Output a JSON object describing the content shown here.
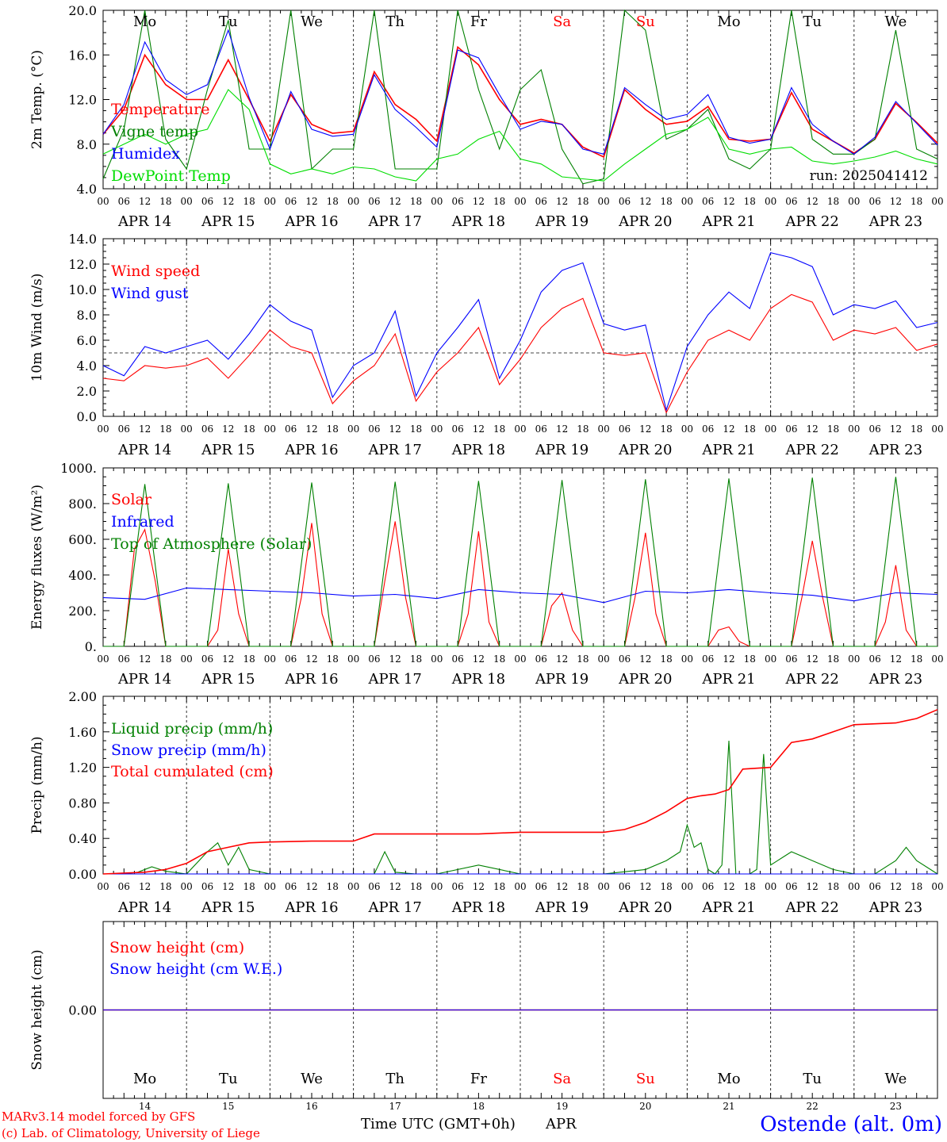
{
  "chart_data": [
    {
      "type": "line",
      "ylabel": "2m Temp. (°C)",
      "ylim": [
        4,
        22
      ],
      "yticks": [
        "4.0",
        "8.0",
        "12.0",
        "16.0",
        "20.0"
      ],
      "run_label": "run: 2025041412",
      "series": [
        {
          "name": "Temperature",
          "color": "#ff0000",
          "x": [
            0,
            6,
            12,
            18,
            24,
            30,
            36,
            42,
            48,
            54,
            60,
            66,
            72,
            78,
            84,
            90,
            96,
            102,
            108,
            114,
            120,
            126,
            132,
            138,
            144,
            150,
            156,
            162,
            168,
            174,
            180,
            186,
            192,
            198,
            204,
            210,
            216,
            222,
            228,
            234,
            240
          ],
          "y": [
            9.5,
            12.0,
            17.5,
            14.5,
            13.0,
            13.0,
            17.0,
            13.0,
            8.8,
            13.5,
            10.5,
            9.6,
            9.8,
            15.8,
            12.5,
            11.0,
            8.8,
            18.3,
            16.5,
            13.0,
            10.5,
            11.0,
            10.5,
            8.2,
            7.2,
            14.0,
            12.0,
            10.5,
            10.8,
            12.3,
            9.0,
            8.8,
            9.0,
            13.7,
            10.0,
            8.8,
            7.6,
            9.0,
            12.6,
            10.7,
            8.6
          ]
        },
        {
          "name": "Vigne temp",
          "color": "#008000",
          "x": [
            0,
            6,
            12,
            18,
            24,
            30,
            36,
            42,
            48,
            54,
            60,
            66,
            72,
            78,
            84,
            90,
            96,
            102,
            108,
            114,
            120,
            126,
            132,
            138,
            144,
            150,
            156,
            162,
            168,
            174,
            180,
            186,
            192,
            198,
            204,
            210,
            216,
            222,
            228,
            234,
            240
          ],
          "y": [
            5.0,
            10.0,
            22.0,
            9.0,
            6.0,
            14.0,
            21.0,
            8.0,
            8.0,
            22.0,
            6.0,
            8.0,
            8.0,
            22.0,
            6.0,
            6.0,
            6.0,
            22.0,
            14.0,
            8.0,
            14.0,
            16.0,
            8.0,
            4.5,
            5.0,
            22.0,
            20.0,
            9.0,
            10.0,
            12.0,
            7.0,
            6.0,
            8.0,
            22.0,
            9.0,
            7.5,
            7.5,
            9.0,
            20.0,
            8.0,
            7.0
          ]
        },
        {
          "name": "Humidex",
          "color": "#0000ff",
          "x": [
            0,
            6,
            12,
            18,
            24,
            30,
            36,
            42,
            48,
            54,
            60,
            66,
            72,
            78,
            84,
            90,
            96,
            102,
            108,
            114,
            120,
            126,
            132,
            138,
            144,
            150,
            156,
            162,
            168,
            174,
            180,
            186,
            192,
            198,
            204,
            210,
            216,
            222,
            228,
            234,
            240
          ],
          "y": [
            9.5,
            12.5,
            18.8,
            15.0,
            13.5,
            14.5,
            20.0,
            13.2,
            8.0,
            13.8,
            10.0,
            9.3,
            9.5,
            15.5,
            12.0,
            10.2,
            8.2,
            18.0,
            17.2,
            13.5,
            10.0,
            10.8,
            10.5,
            8.0,
            7.5,
            14.2,
            12.5,
            11.0,
            11.5,
            13.5,
            9.2,
            8.6,
            9.0,
            14.2,
            10.5,
            8.8,
            7.5,
            9.2,
            12.8,
            10.6,
            8.4
          ]
        },
        {
          "name": "DewPoint Temp",
          "color": "#00dd00",
          "x": [
            0,
            6,
            12,
            18,
            24,
            30,
            36,
            42,
            48,
            54,
            60,
            66,
            72,
            78,
            84,
            90,
            96,
            102,
            108,
            114,
            120,
            126,
            132,
            138,
            144,
            150,
            156,
            162,
            168,
            174,
            180,
            186,
            192,
            198,
            204,
            210,
            216,
            222,
            228,
            234,
            240
          ],
          "y": [
            7.5,
            8.5,
            9.5,
            8.5,
            9.5,
            10.0,
            14.0,
            12.0,
            6.5,
            5.5,
            6.0,
            5.5,
            6.2,
            6.0,
            5.2,
            4.8,
            7.0,
            7.5,
            9.0,
            9.8,
            7.0,
            6.5,
            5.2,
            5.0,
            4.8,
            6.5,
            8.0,
            9.5,
            10.0,
            11.2,
            8.0,
            7.5,
            8.0,
            8.2,
            6.8,
            6.5,
            6.8,
            7.2,
            7.8,
            7.0,
            6.5
          ]
        }
      ]
    },
    {
      "type": "line",
      "ylabel": "10m Wind (m/s)",
      "ylim": [
        0,
        14
      ],
      "yticks": [
        "0.0",
        "2.0",
        "4.0",
        "6.0",
        "8.0",
        "10.0",
        "12.0",
        "14.0"
      ],
      "reference_line": 5,
      "series": [
        {
          "name": "Wind speed",
          "color": "#ff0000",
          "x": [
            0,
            6,
            12,
            18,
            24,
            30,
            36,
            42,
            48,
            54,
            60,
            66,
            72,
            78,
            84,
            90,
            96,
            102,
            108,
            114,
            120,
            126,
            132,
            138,
            144,
            150,
            156,
            162,
            168,
            174,
            180,
            186,
            192,
            198,
            204,
            210,
            216,
            222,
            228,
            234,
            240
          ],
          "y": [
            3.0,
            2.8,
            4.0,
            3.8,
            4.0,
            4.6,
            3.0,
            4.8,
            6.8,
            5.5,
            5.0,
            1.0,
            2.8,
            4.0,
            6.5,
            1.2,
            3.5,
            5.0,
            7.0,
            2.5,
            4.5,
            7.0,
            8.5,
            9.3,
            5.0,
            4.8,
            5.0,
            0.3,
            3.5,
            6.0,
            6.8,
            6.0,
            8.5,
            9.6,
            9.0,
            6.0,
            6.8,
            6.5,
            7.0,
            5.2,
            5.7
          ]
        },
        {
          "name": "Wind gust",
          "color": "#0000ff",
          "x": [
            0,
            6,
            12,
            18,
            24,
            30,
            36,
            42,
            48,
            54,
            60,
            66,
            72,
            78,
            84,
            90,
            96,
            102,
            108,
            114,
            120,
            126,
            132,
            138,
            144,
            150,
            156,
            162,
            168,
            174,
            180,
            186,
            192,
            198,
            204,
            210,
            216,
            222,
            228,
            234,
            240
          ],
          "y": [
            4.0,
            3.2,
            5.5,
            5.0,
            5.5,
            6.0,
            4.5,
            6.5,
            8.8,
            7.5,
            6.8,
            1.5,
            4.0,
            5.0,
            8.3,
            1.6,
            5.0,
            7.0,
            9.2,
            3.0,
            6.0,
            9.8,
            11.5,
            12.1,
            7.3,
            6.8,
            7.2,
            0.5,
            5.5,
            8.0,
            9.8,
            8.5,
            12.9,
            12.5,
            11.8,
            8.0,
            8.8,
            8.5,
            9.1,
            7.0,
            7.4
          ]
        }
      ]
    },
    {
      "type": "line",
      "ylabel": "Energy fluxes (W/m²)",
      "ylim": [
        0,
        1100
      ],
      "yticks": [
        "0.",
        "200.",
        "400.",
        "600.",
        "800.",
        "1000."
      ],
      "series": [
        {
          "name": "Solar",
          "color": "#ff0000",
          "x": [
            0,
            6,
            9,
            12,
            15,
            18,
            24,
            30,
            33,
            36,
            39,
            42,
            48,
            54,
            57,
            60,
            63,
            66,
            72,
            78,
            81,
            84,
            87,
            90,
            96,
            102,
            105,
            108,
            111,
            114,
            120,
            126,
            129,
            132,
            135,
            138,
            144,
            150,
            153,
            156,
            159,
            162,
            168,
            174,
            177,
            180,
            183,
            186,
            192,
            198,
            201,
            204,
            207,
            210,
            216,
            222,
            225,
            228,
            231,
            234,
            240
          ],
          "y": [
            0,
            0,
            600,
            720,
            400,
            0,
            0,
            0,
            100,
            600,
            200,
            0,
            0,
            0,
            300,
            760,
            200,
            0,
            0,
            0,
            400,
            770,
            300,
            0,
            0,
            0,
            200,
            710,
            150,
            0,
            0,
            0,
            250,
            330,
            100,
            0,
            0,
            0,
            300,
            700,
            200,
            0,
            0,
            0,
            100,
            120,
            30,
            0,
            0,
            0,
            300,
            650,
            300,
            0,
            0,
            0,
            150,
            500,
            100,
            0,
            0
          ]
        },
        {
          "name": "Infrared",
          "color": "#0000ff",
          "x": [
            0,
            12,
            24,
            36,
            48,
            60,
            72,
            84,
            96,
            108,
            120,
            132,
            144,
            156,
            168,
            180,
            192,
            204,
            216,
            228,
            240
          ],
          "y": [
            300,
            290,
            360,
            350,
            340,
            330,
            310,
            320,
            295,
            350,
            330,
            320,
            270,
            340,
            330,
            350,
            330,
            315,
            280,
            330,
            320
          ]
        },
        {
          "name": "Top of Atmosphere (Solar)",
          "color": "#008000",
          "x": [
            0,
            6,
            12,
            18,
            24,
            30,
            36,
            42,
            48,
            54,
            60,
            66,
            72,
            78,
            84,
            90,
            96,
            102,
            108,
            114,
            120,
            126,
            132,
            138,
            144,
            150,
            156,
            162,
            168,
            174,
            180,
            186,
            192,
            198,
            204,
            210,
            216,
            222,
            228,
            234,
            240
          ],
          "y": [
            0,
            0,
            1000,
            0,
            0,
            0,
            1005,
            0,
            0,
            0,
            1010,
            0,
            0,
            0,
            1015,
            0,
            0,
            0,
            1020,
            0,
            0,
            0,
            1025,
            0,
            0,
            0,
            1030,
            0,
            0,
            0,
            1035,
            0,
            0,
            0,
            1040,
            0,
            0,
            0,
            1045,
            0,
            0
          ]
        }
      ]
    },
    {
      "type": "line",
      "ylabel": "Precip (mm/h)",
      "ylim": [
        0,
        2.0
      ],
      "yticks": [
        "0.00",
        "0.40",
        "0.80",
        "1.20",
        "1.60",
        "2.00"
      ],
      "series": [
        {
          "name": "Liquid precip (mm/h)",
          "color": "#008000",
          "x": [
            0,
            6,
            10,
            14,
            18,
            24,
            30,
            33,
            36,
            39,
            42,
            48,
            60,
            72,
            78,
            81,
            84,
            90,
            96,
            108,
            120,
            126,
            132,
            144,
            156,
            162,
            164,
            166,
            168,
            170,
            172,
            174,
            176,
            178,
            180,
            182,
            184,
            186,
            188,
            190,
            192,
            194,
            196,
            198,
            204,
            210,
            216,
            222,
            228,
            231,
            234,
            240
          ],
          "y": [
            0,
            0,
            0.02,
            0.08,
            0.03,
            0,
            0.25,
            0.35,
            0.1,
            0.3,
            0.05,
            0,
            0,
            0,
            0,
            0.25,
            0.02,
            0,
            0,
            0.1,
            0,
            0,
            0,
            0,
            0.05,
            0.15,
            0.2,
            0.25,
            0.55,
            0.3,
            0.35,
            0.05,
            0,
            0.1,
            1.5,
            0,
            0,
            0,
            0.05,
            1.35,
            0.1,
            0.15,
            0.2,
            0.25,
            0.15,
            0.05,
            0,
            0,
            0.15,
            0.3,
            0.15,
            0
          ]
        },
        {
          "name": "Snow precip (mm/h)",
          "color": "#0000ff",
          "x": [
            0,
            240
          ],
          "y": [
            0,
            0
          ]
        },
        {
          "name": "Total cumulated (cm)",
          "color": "#ff0000",
          "x": [
            0,
            12,
            18,
            24,
            30,
            36,
            42,
            48,
            60,
            72,
            78,
            84,
            96,
            108,
            120,
            132,
            144,
            150,
            156,
            162,
            168,
            172,
            176,
            180,
            184,
            192,
            198,
            204,
            210,
            216,
            222,
            228,
            234,
            240
          ],
          "y": [
            0,
            0.02,
            0.05,
            0.12,
            0.25,
            0.3,
            0.35,
            0.36,
            0.37,
            0.37,
            0.45,
            0.45,
            0.45,
            0.45,
            0.47,
            0.47,
            0.47,
            0.5,
            0.58,
            0.7,
            0.85,
            0.88,
            0.9,
            0.95,
            1.18,
            1.2,
            1.48,
            1.52,
            1.6,
            1.68,
            1.69,
            1.7,
            1.75,
            1.85
          ]
        }
      ]
    },
    {
      "type": "line",
      "ylabel": "Snow height (cm)",
      "yticks": [
        "0.00"
      ],
      "series": [
        {
          "name": "Snow height (cm)",
          "color": "#ff0000",
          "x": [
            0,
            240
          ],
          "y": [
            0,
            0
          ]
        },
        {
          "name": "Snow height (cm W.E.)",
          "color": "#0000ff",
          "x": [
            0,
            240
          ],
          "y": [
            0,
            0
          ]
        }
      ]
    }
  ],
  "x_axis": {
    "hour_labels": [
      "00",
      "06",
      "12",
      "18"
    ],
    "end_label": "00",
    "date_labels": [
      "APR 14",
      "APR 15",
      "APR 16",
      "APR 17",
      "APR 18",
      "APR 19",
      "APR 20",
      "APR 21",
      "APR 22",
      "APR 23"
    ],
    "weekdays": [
      "Mo",
      "Tu",
      "We",
      "Th",
      "Fr",
      "Sa",
      "Su",
      "Mo",
      "Tu",
      "We"
    ],
    "weekday_colors": [
      "#000000",
      "#000000",
      "#000000",
      "#000000",
      "#000000",
      "#ff0000",
      "#ff0000",
      "#000000",
      "#000000",
      "#000000"
    ],
    "day_numbers": [
      "14",
      "15",
      "16",
      "17",
      "18",
      "19",
      "20",
      "21",
      "22",
      "23"
    ],
    "xlabel": "Time UTC (GMT+0h)",
    "month": "APR"
  },
  "footer": {
    "credit_line1": "MARv3.14 model forced by GFS",
    "credit_line2": "(c) Lab. of Climatology, University of Liege",
    "station": "Ostende (alt. 0m)"
  }
}
